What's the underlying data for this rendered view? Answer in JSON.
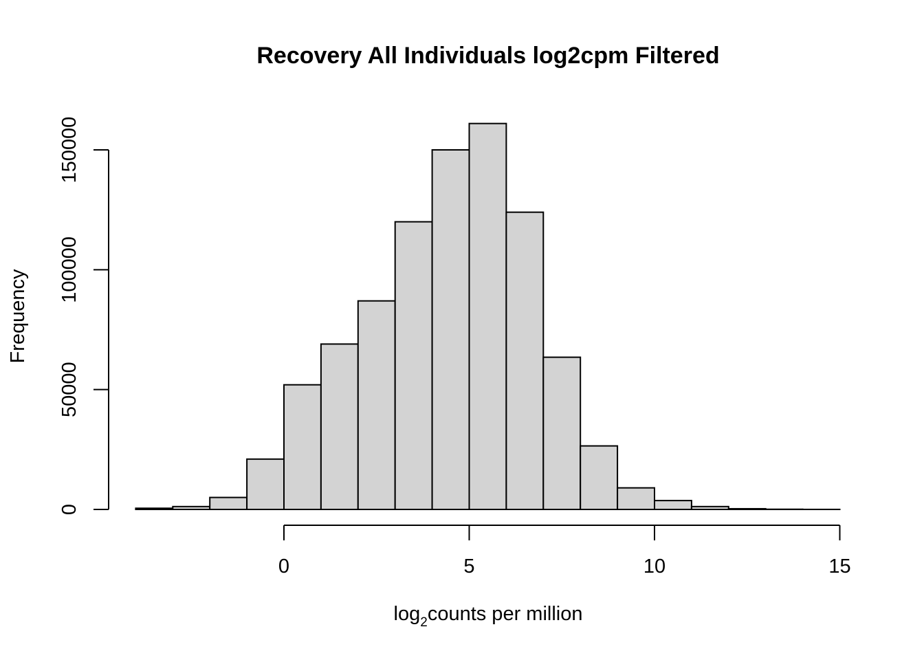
{
  "chart_data": {
    "type": "bar",
    "title": "Recovery All Individuals log2cpm Filtered",
    "xlabel": {
      "base": "log",
      "subscript": "2",
      "rest": "counts per million"
    },
    "ylabel": "Frequency",
    "bin_width": 1,
    "bins": [
      {
        "start": -4,
        "end": -3,
        "count": 500
      },
      {
        "start": -3,
        "end": -2,
        "count": 1200
      },
      {
        "start": -2,
        "end": -1,
        "count": 5000
      },
      {
        "start": -1,
        "end": 0,
        "count": 21000
      },
      {
        "start": 0,
        "end": 1,
        "count": 52000
      },
      {
        "start": 1,
        "end": 2,
        "count": 69000
      },
      {
        "start": 2,
        "end": 3,
        "count": 87000
      },
      {
        "start": 3,
        "end": 4,
        "count": 120000
      },
      {
        "start": 4,
        "end": 5,
        "count": 150000
      },
      {
        "start": 5,
        "end": 6,
        "count": 161000
      },
      {
        "start": 6,
        "end": 7,
        "count": 124000
      },
      {
        "start": 7,
        "end": 8,
        "count": 63500
      },
      {
        "start": 8,
        "end": 9,
        "count": 26500
      },
      {
        "start": 9,
        "end": 10,
        "count": 9000
      },
      {
        "start": 10,
        "end": 11,
        "count": 3700
      },
      {
        "start": 11,
        "end": 12,
        "count": 1200
      },
      {
        "start": 12,
        "end": 13,
        "count": 300
      },
      {
        "start": 13,
        "end": 14,
        "count": 80
      },
      {
        "start": 14,
        "end": 15,
        "count": 20
      }
    ],
    "x_ticks": [
      0,
      5,
      10,
      15
    ],
    "y_ticks": [
      0,
      50000,
      100000,
      150000
    ],
    "xlim": [
      0,
      15
    ],
    "ylim": [
      0,
      150000
    ],
    "grid": false
  }
}
